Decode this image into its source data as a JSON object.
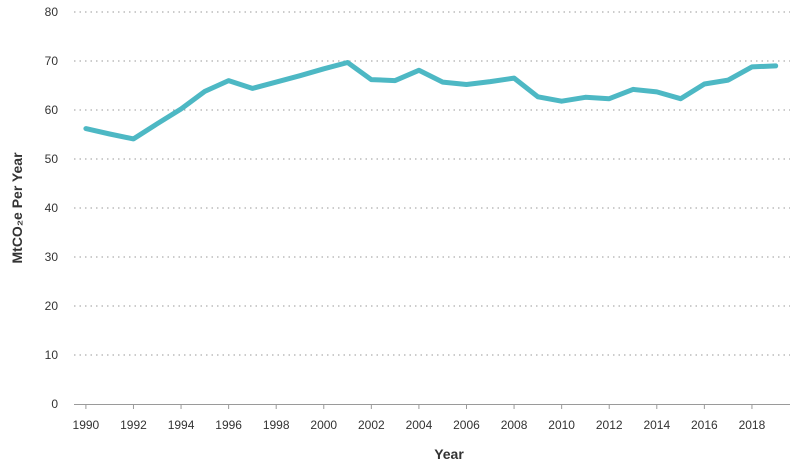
{
  "chart_data": {
    "type": "line",
    "title": "",
    "xlabel": "Year",
    "ylabel": "MtCO₂e Per Year",
    "xlim": [
      1989.5,
      2019.6
    ],
    "ylim": [
      0,
      80
    ],
    "y_ticks": [
      0,
      10,
      20,
      30,
      40,
      50,
      60,
      70,
      80
    ],
    "x_ticks": [
      1990,
      1992,
      1994,
      1996,
      1998,
      2000,
      2002,
      2004,
      2006,
      2008,
      2010,
      2012,
      2014,
      2016,
      2018
    ],
    "grid": "horizontal-dotted",
    "legend": "none",
    "color": "#4db8c4",
    "series": [
      {
        "x": [
          1990,
          1991,
          1992,
          1993,
          1994,
          1995,
          1996,
          1997,
          1998,
          1999,
          2000,
          2001,
          2002,
          2003,
          2004,
          2005,
          2006,
          2007,
          2008,
          2009,
          2010,
          2011,
          2012,
          2013,
          2014,
          2015,
          2016,
          2017,
          2018,
          2019
        ],
        "values": [
          56.2,
          55.1,
          54.1,
          57.2,
          60.2,
          63.8,
          66.0,
          64.4,
          65.7,
          67.0,
          68.4,
          69.7,
          66.2,
          66.0,
          68.1,
          65.7,
          65.2,
          65.8,
          66.5,
          62.7,
          61.8,
          62.6,
          62.3,
          64.2,
          63.7,
          62.3,
          65.3,
          66.1,
          68.8,
          69.0
        ]
      }
    ]
  }
}
